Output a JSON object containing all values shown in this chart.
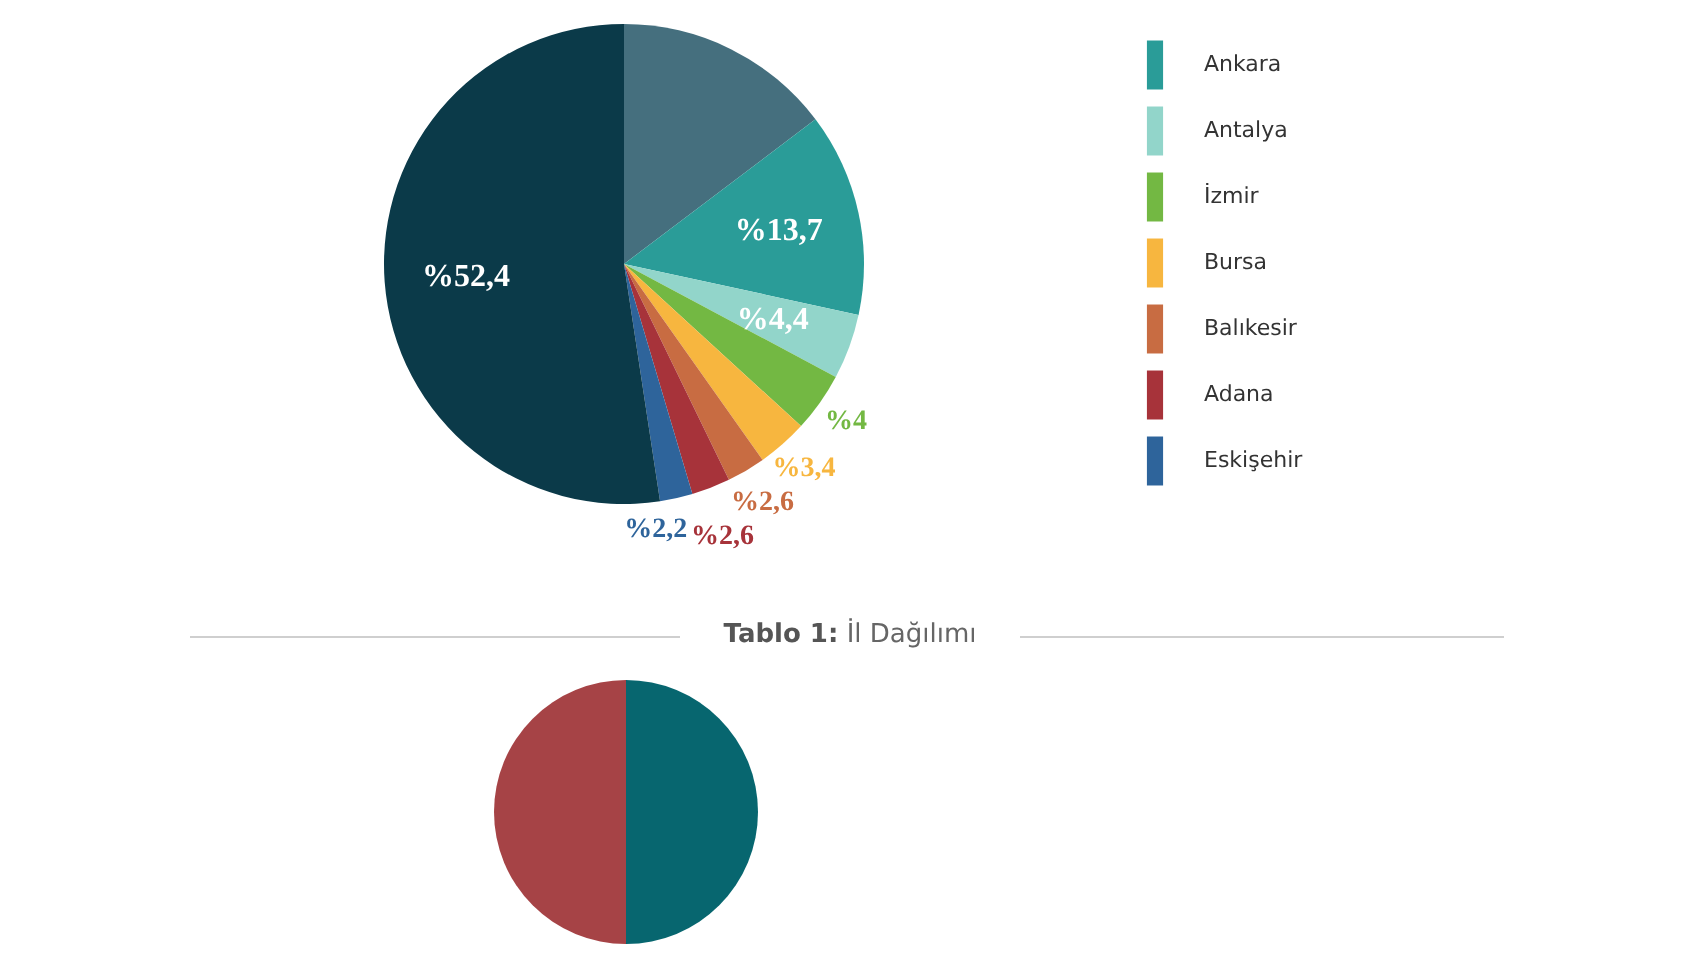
{
  "chart_data": [
    {
      "type": "pie",
      "categories": [
        null,
        "Ankara",
        "Antalya",
        "İzmir",
        "Bursa",
        "Balıkesir",
        "Adana",
        "Eskişehir",
        null
      ],
      "values": [
        14.7,
        13.7,
        4.4,
        4,
        3.4,
        2.6,
        2.6,
        2.2,
        52.4
      ],
      "colors": [
        "#456f7e",
        "#2a9c98",
        "#92d5ca",
        "#73b843",
        "#f7b63f",
        "#c86c42",
        "#a7333a",
        "#2e649b",
        "#0b3a49"
      ],
      "value_labels": [
        null,
        "%13,7",
        "%4,4",
        "%4",
        "%3,4",
        "%2,6",
        "%2,6",
        "%2,2",
        "%52,4"
      ],
      "legend": "right",
      "annotations": [
        "Tablo 1: İl Dağılımı"
      ]
    },
    {
      "type": "pie",
      "categories": [
        null,
        null
      ],
      "values": [
        50,
        50
      ],
      "colors": [
        "#07666f",
        "#a64346"
      ]
    }
  ]
}
